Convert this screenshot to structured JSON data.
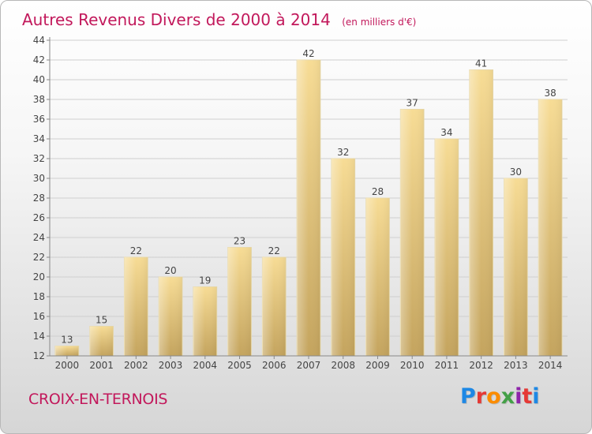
{
  "header": {
    "title": "Autres Revenus Divers de 2000 à 2014",
    "subtitle": "(en milliers d'€)"
  },
  "footer": {
    "commune": "CROIX-EN-TERNOIS",
    "logo_letters": [
      "P",
      "r",
      "o",
      "x",
      "i",
      "t",
      "i"
    ],
    "logo_colors": [
      "#1e88e5",
      "#e53935",
      "#fb8c00",
      "#43a047",
      "#8e24aa",
      "#e53935",
      "#1e88e5"
    ]
  },
  "colors": {
    "title": "#c2185b",
    "bar_light": "#f7dc95",
    "bar_dark": "#c4a45e",
    "grid": "#cfcfcf"
  },
  "chart_data": {
    "type": "bar",
    "title": "Autres Revenus Divers de 2000 à 2014",
    "subtitle": "(en milliers d'€)",
    "categories": [
      "2000",
      "2001",
      "2002",
      "2003",
      "2004",
      "2005",
      "2006",
      "2007",
      "2008",
      "2009",
      "2010",
      "2011",
      "2012",
      "2013",
      "2014"
    ],
    "values": [
      13,
      15,
      22,
      20,
      19,
      23,
      22,
      42,
      32,
      28,
      37,
      34,
      41,
      30,
      38
    ],
    "ylim": [
      12,
      44
    ],
    "yticks": [
      12,
      14,
      16,
      18,
      20,
      22,
      24,
      26,
      28,
      30,
      32,
      34,
      36,
      38,
      40,
      42,
      44
    ],
    "grid": true,
    "data_labels": true
  }
}
